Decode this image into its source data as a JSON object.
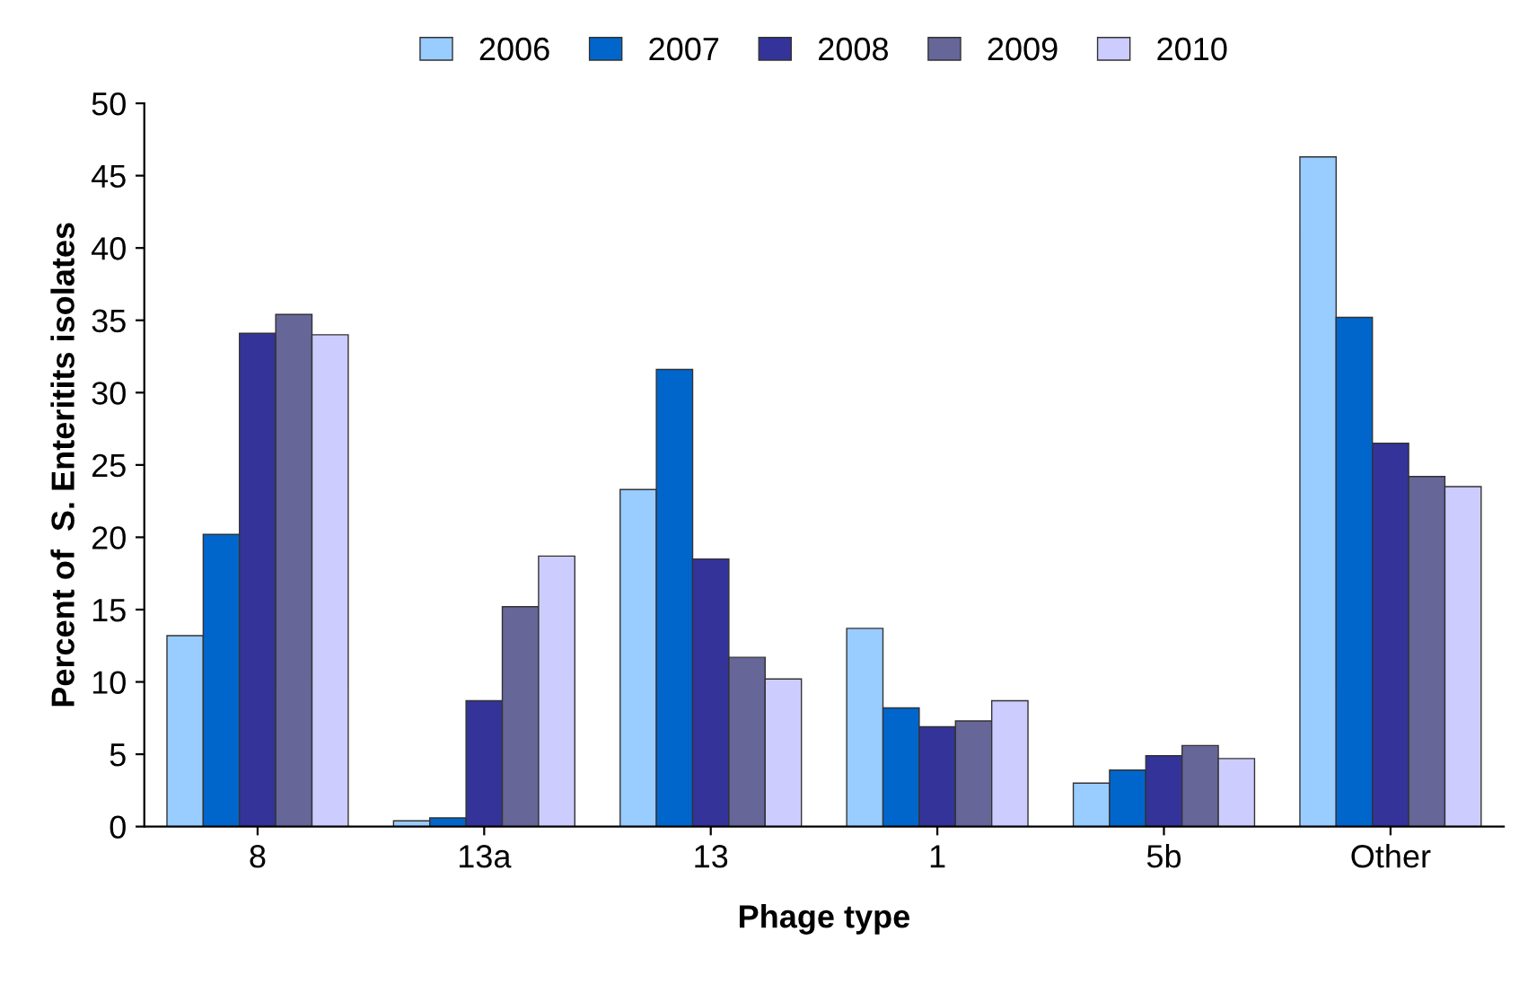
{
  "chart_data": {
    "type": "bar",
    "xlabel": "Phage type",
    "ylabel": "Percent of  S. Enteritits isolates",
    "categories": [
      "8",
      "13a",
      "13",
      "1",
      "5b",
      "Other"
    ],
    "series": [
      {
        "name": "2006",
        "color": "#99ccff",
        "values": [
          13.2,
          0.4,
          23.3,
          13.7,
          3.0,
          46.3
        ]
      },
      {
        "name": "2007",
        "color": "#0066cc",
        "values": [
          20.2,
          0.6,
          31.6,
          8.2,
          3.9,
          35.2
        ]
      },
      {
        "name": "2008",
        "color": "#333399",
        "values": [
          34.1,
          8.7,
          18.5,
          6.9,
          4.9,
          26.5
        ]
      },
      {
        "name": "2009",
        "color": "#666699",
        "values": [
          35.4,
          15.2,
          11.7,
          7.3,
          5.6,
          24.2
        ]
      },
      {
        "name": "2010",
        "color": "#ccccff",
        "values": [
          34.0,
          18.7,
          10.2,
          8.7,
          4.7,
          23.5
        ]
      }
    ],
    "ylim": [
      0,
      50
    ],
    "yticks": [
      0,
      5,
      10,
      15,
      20,
      25,
      30,
      35,
      40,
      45,
      50
    ],
    "grid": false,
    "legend": "top"
  }
}
